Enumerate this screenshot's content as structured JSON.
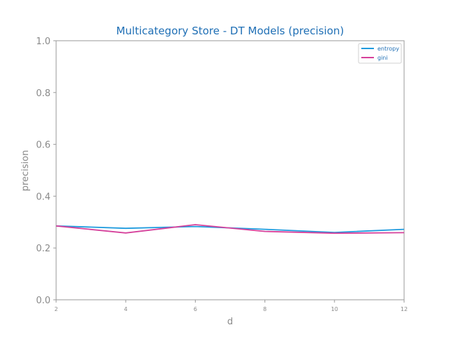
{
  "chart_data": {
    "type": "line",
    "title": "Multicategory Store - DT Models (precision)",
    "xlabel": "d",
    "ylabel": "precision",
    "x": [
      2,
      4,
      6,
      8,
      10,
      12
    ],
    "xlim": [
      2,
      12
    ],
    "ylim": [
      0.0,
      1.0
    ],
    "x_ticks": [
      "2",
      "4",
      "6",
      "8",
      "10",
      "12"
    ],
    "y_ticks": [
      "0.0",
      "0.2",
      "0.4",
      "0.6",
      "0.8",
      "1.0"
    ],
    "grid": false,
    "legend_position": "top-right",
    "series": [
      {
        "name": "entropy",
        "color": "#1f9bde",
        "values": [
          0.285,
          0.276,
          0.283,
          0.272,
          0.26,
          0.272
        ]
      },
      {
        "name": "gini",
        "color": "#d6419b",
        "values": [
          0.285,
          0.258,
          0.29,
          0.264,
          0.257,
          0.259
        ]
      }
    ]
  }
}
